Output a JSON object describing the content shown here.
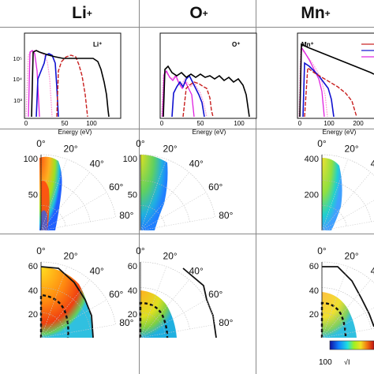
{
  "columns": [
    {
      "ion": "Li",
      "charge": "+"
    },
    {
      "ion": "O",
      "charge": "+"
    },
    {
      "ion": "Mn",
      "charge": "+"
    }
  ],
  "spectra": {
    "xlabel": "Energy (eV)",
    "y_ticks": [
      "10⁵",
      "10⁴",
      "10³"
    ],
    "panels": [
      {
        "label": "Li⁺",
        "x_ticks": [
          "0",
          "50",
          "100"
        ]
      },
      {
        "label": "O⁺",
        "x_ticks": [
          "0",
          "50",
          "100"
        ]
      },
      {
        "label": "Mn⁺",
        "x_ticks": [
          "0",
          "100",
          "200"
        ]
      }
    ],
    "colors": {
      "black": "#000000",
      "blue": "#1010d0",
      "magenta": "#e020e0",
      "red": "#c81e1e",
      "pink": "#ff9fd8"
    }
  },
  "polar_rows": {
    "angle_labels": [
      "0°",
      "20°",
      "40°",
      "60°",
      "80°"
    ],
    "row2_radial_ticks": [
      [
        "50",
        "100"
      ],
      [
        "50",
        "100"
      ],
      [
        "200",
        "400"
      ]
    ],
    "row3_radial_ticks": [
      [
        "20",
        "40",
        "60"
      ],
      [
        "20",
        "40",
        "60"
      ],
      [
        "20",
        "40",
        "60"
      ]
    ]
  },
  "colorbar": {
    "min_label": "100"
  }
}
